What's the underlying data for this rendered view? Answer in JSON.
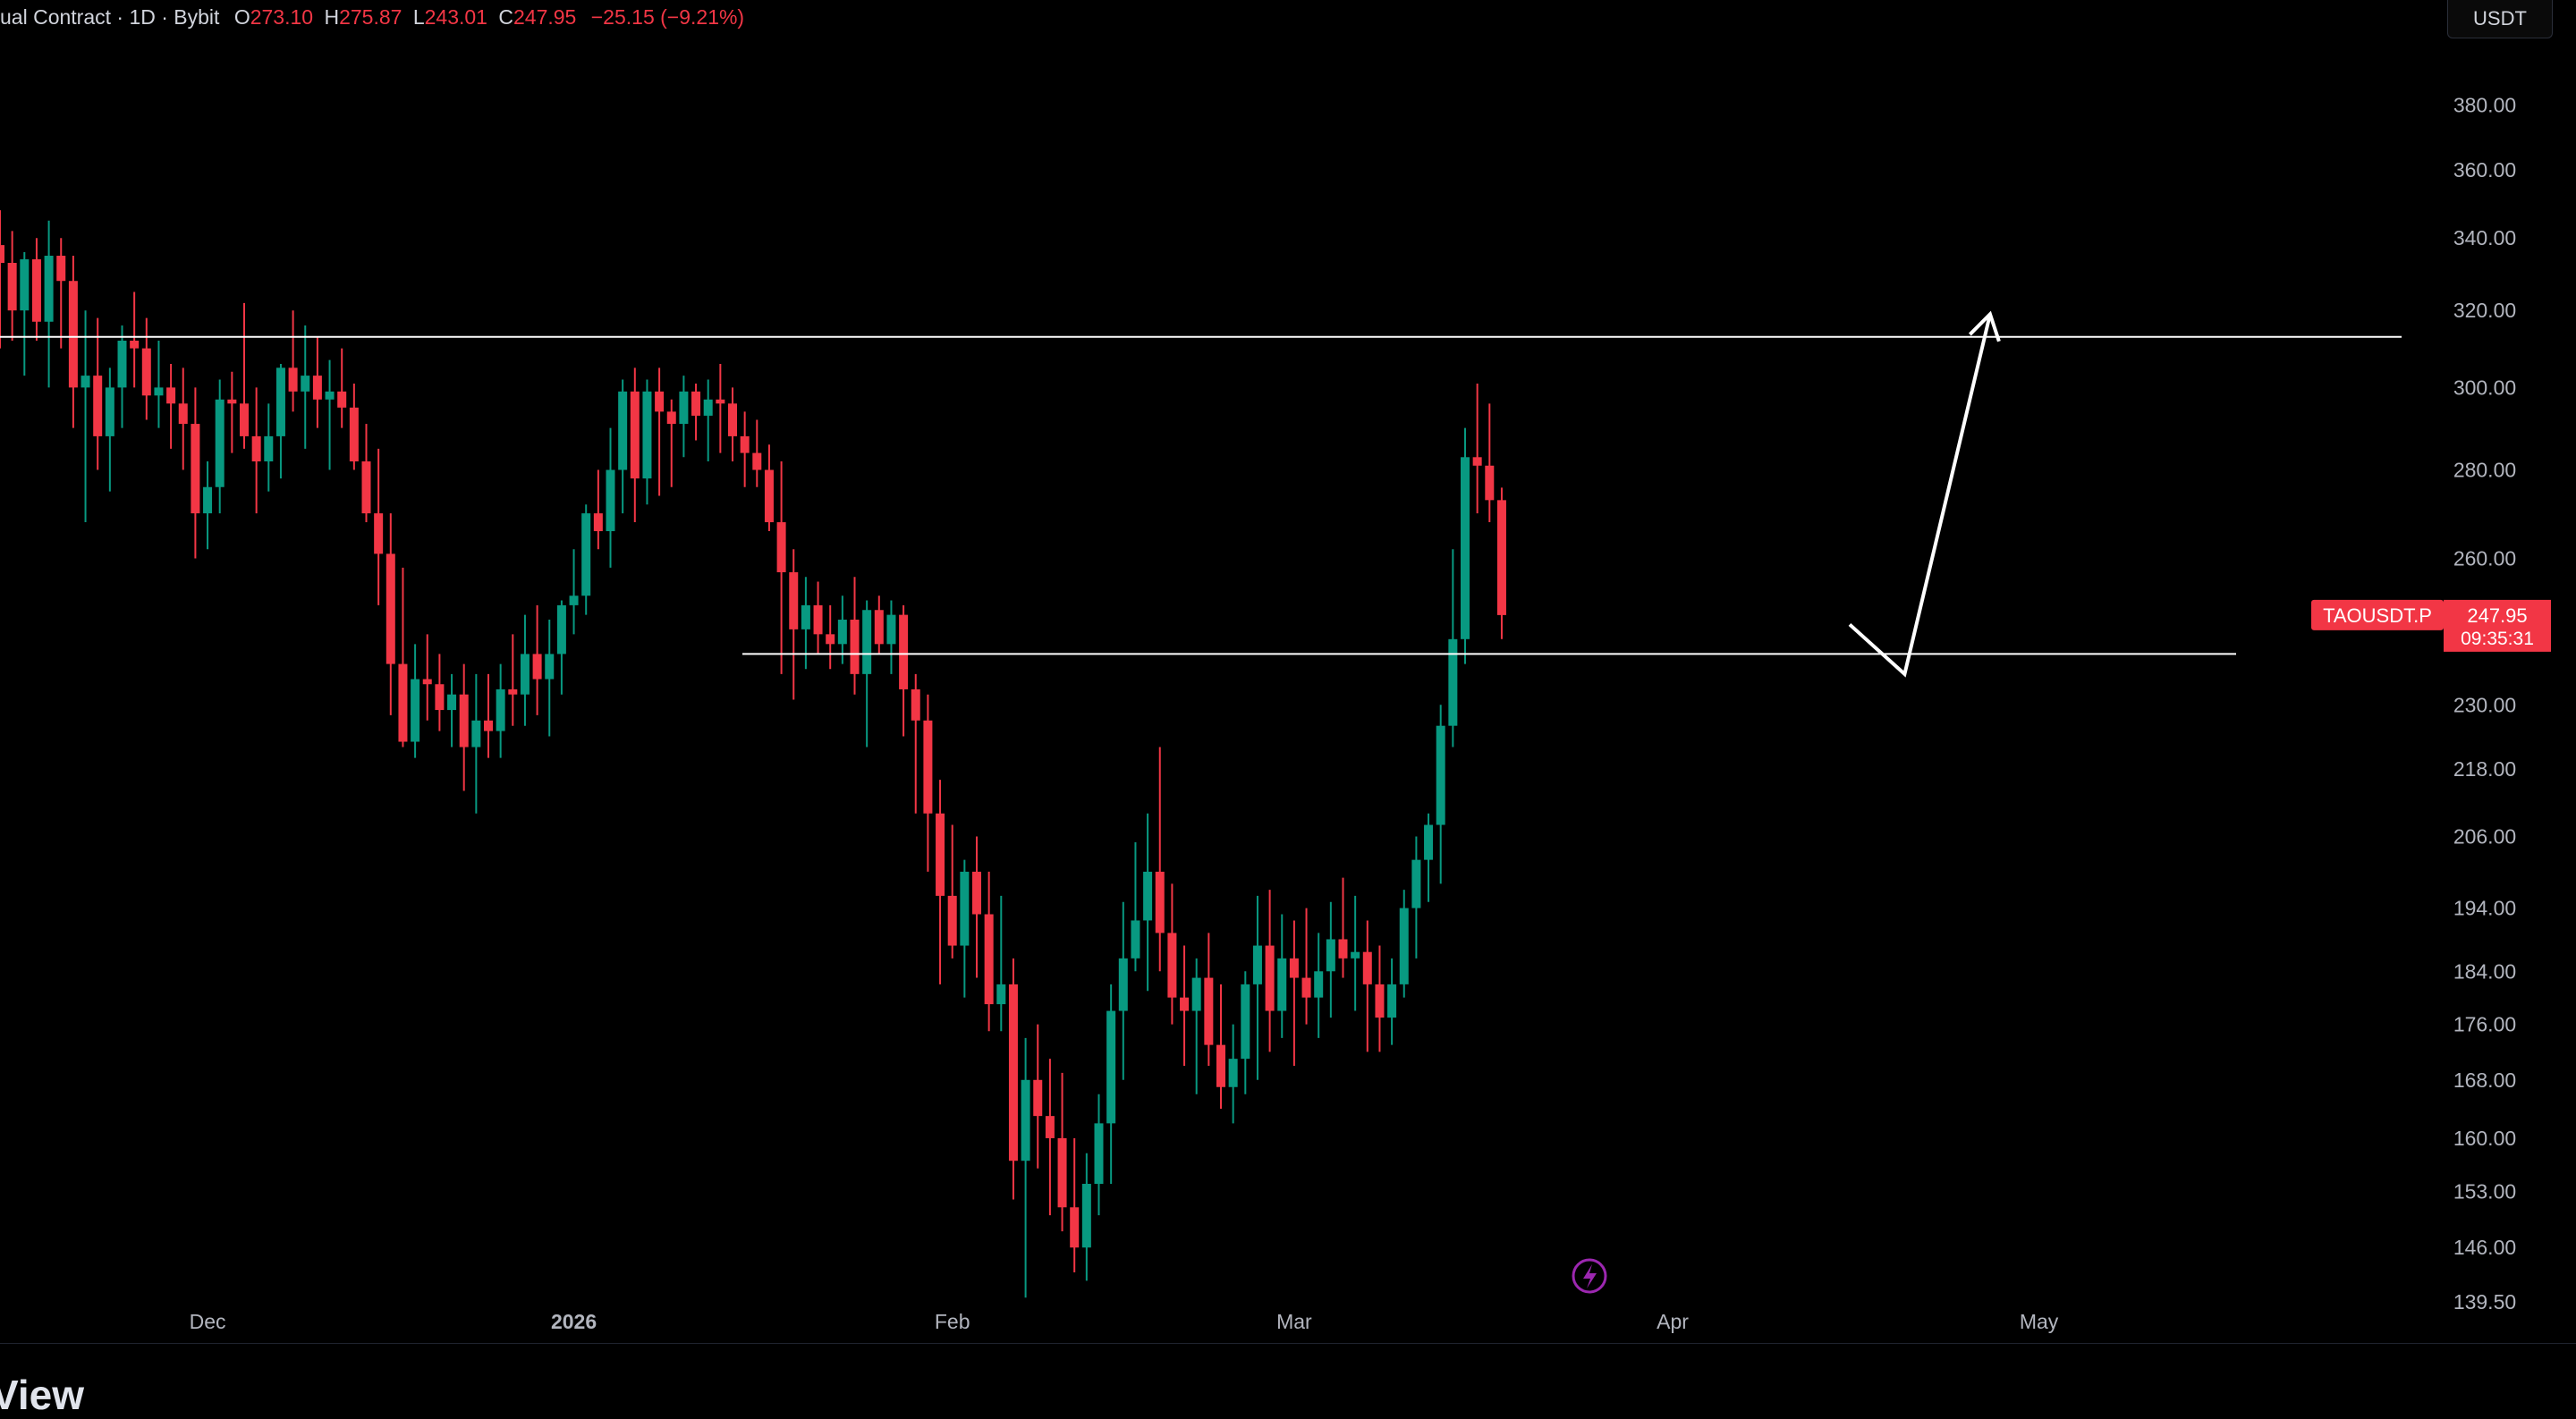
{
  "legend": {
    "symbol_text": "ual Contract · 1D · Bybit",
    "o_label": "O",
    "o_value": "273.10",
    "h_label": "H",
    "h_value": "275.87",
    "l_label": "L",
    "l_value": "243.01",
    "c_label": "C",
    "c_value": "247.95",
    "change": "−25.15 (−9.21%)"
  },
  "currency_button": "USDT",
  "price_tag": {
    "symbol": "TAOUSDT.P",
    "price": "247.95",
    "countdown": "09:35:31",
    "color": "#f23645"
  },
  "brand_partial": "View",
  "colors": {
    "up": "#089981",
    "down": "#f23645",
    "background": "#000000",
    "lines": "#ffffff",
    "event_icon": "#9c27b0"
  },
  "icons": {
    "event": "lightning-icon"
  },
  "chart_data": {
    "type": "candlestick",
    "timeframe": "1D",
    "ylim": [
      136,
      415
    ],
    "y_scale": "log",
    "y_ticks": [
      "380.00",
      "360.00",
      "340.00",
      "320.00",
      "300.00",
      "280.00",
      "260.00",
      "230.00",
      "218.00",
      "206.00",
      "194.00",
      "184.00",
      "176.00",
      "168.00",
      "160.00",
      "153.00",
      "146.00",
      "139.50"
    ],
    "x_ticks": [
      {
        "label": "Dec",
        "index": 17
      },
      {
        "label": "2026",
        "index": 47
      },
      {
        "label": "Feb",
        "index": 78
      },
      {
        "label": "Mar",
        "index": 106
      },
      {
        "label": "Apr",
        "index": 137
      },
      {
        "label": "May",
        "index": 167
      }
    ],
    "first_index_on_screen": 0,
    "candles": [
      [
        338,
        348,
        310,
        333
      ],
      [
        333,
        342,
        312,
        320
      ],
      [
        320,
        336,
        303,
        334
      ],
      [
        334,
        340,
        312,
        317
      ],
      [
        317,
        345,
        300,
        335
      ],
      [
        335,
        340,
        310,
        328
      ],
      [
        328,
        335,
        290,
        300
      ],
      [
        300,
        320,
        268,
        303
      ],
      [
        303,
        318,
        280,
        288
      ],
      [
        288,
        305,
        275,
        300
      ],
      [
        300,
        316,
        290,
        312
      ],
      [
        312,
        325,
        300,
        310
      ],
      [
        310,
        318,
        292,
        298
      ],
      [
        298,
        312,
        290,
        300
      ],
      [
        300,
        306,
        285,
        296
      ],
      [
        296,
        305,
        280,
        291
      ],
      [
        291,
        300,
        260,
        270
      ],
      [
        270,
        282,
        262,
        276
      ],
      [
        276,
        302,
        270,
        297
      ],
      [
        297,
        304,
        284,
        296
      ],
      [
        296,
        322,
        285,
        288
      ],
      [
        288,
        300,
        270,
        282
      ],
      [
        282,
        296,
        275,
        288
      ],
      [
        288,
        306,
        278,
        305
      ],
      [
        305,
        320,
        294,
        299
      ],
      [
        299,
        316,
        285,
        303
      ],
      [
        303,
        313,
        290,
        297
      ],
      [
        297,
        307,
        280,
        299
      ],
      [
        299,
        310,
        290,
        295
      ],
      [
        295,
        301,
        280,
        282
      ],
      [
        282,
        291,
        268,
        270
      ],
      [
        270,
        285,
        250,
        261
      ],
      [
        261,
        270,
        228,
        238
      ],
      [
        238,
        258,
        222,
        223
      ],
      [
        223,
        242,
        220,
        235
      ],
      [
        235,
        244,
        227,
        234
      ],
      [
        234,
        240,
        225,
        229
      ],
      [
        229,
        236,
        222,
        232
      ],
      [
        232,
        238,
        214,
        222
      ],
      [
        222,
        236,
        210,
        227
      ],
      [
        227,
        236,
        220,
        225
      ],
      [
        225,
        238,
        220,
        233
      ],
      [
        233,
        244,
        226,
        232
      ],
      [
        232,
        248,
        226,
        240
      ],
      [
        240,
        250,
        228,
        235
      ],
      [
        235,
        247,
        224,
        240
      ],
      [
        240,
        251,
        232,
        250
      ],
      [
        250,
        262,
        244,
        252
      ],
      [
        252,
        272,
        248,
        270
      ],
      [
        270,
        280,
        262,
        266
      ],
      [
        266,
        290,
        258,
        280
      ],
      [
        280,
        302,
        270,
        299
      ],
      [
        299,
        305,
        268,
        278
      ],
      [
        278,
        302,
        272,
        299
      ],
      [
        299,
        305,
        274,
        294
      ],
      [
        294,
        297,
        276,
        291
      ],
      [
        291,
        303,
        283,
        299
      ],
      [
        299,
        301,
        287,
        293
      ],
      [
        293,
        302,
        282,
        297
      ],
      [
        297,
        306,
        284,
        296
      ],
      [
        296,
        300,
        282,
        288
      ],
      [
        288,
        294,
        276,
        284
      ],
      [
        284,
        292,
        276,
        280
      ],
      [
        280,
        286,
        266,
        268
      ],
      [
        268,
        282,
        236,
        257
      ],
      [
        257,
        262,
        231,
        245
      ],
      [
        245,
        256,
        237,
        250
      ],
      [
        250,
        255,
        240,
        244
      ],
      [
        244,
        250,
        237,
        242
      ],
      [
        242,
        252,
        238,
        247
      ],
      [
        247,
        256,
        232,
        236
      ],
      [
        236,
        251,
        222,
        249
      ],
      [
        249,
        252,
        240,
        242
      ],
      [
        242,
        251,
        236,
        248
      ],
      [
        248,
        250,
        224,
        233
      ],
      [
        233,
        236,
        210,
        227
      ],
      [
        227,
        232,
        200,
        210
      ],
      [
        210,
        216,
        182,
        196
      ],
      [
        196,
        208,
        186,
        188
      ],
      [
        188,
        202,
        180,
        200
      ],
      [
        200,
        206,
        183,
        193
      ],
      [
        193,
        200,
        175,
        179
      ],
      [
        179,
        196,
        175,
        182
      ],
      [
        182,
        186,
        152,
        157
      ],
      [
        157,
        174,
        140,
        168
      ],
      [
        168,
        176,
        156,
        163
      ],
      [
        163,
        171,
        150,
        160
      ],
      [
        160,
        169,
        148,
        151
      ],
      [
        151,
        160,
        143,
        146
      ],
      [
        146,
        158,
        142,
        154
      ],
      [
        154,
        166,
        150,
        162
      ],
      [
        162,
        182,
        154,
        178
      ],
      [
        178,
        195,
        168,
        186
      ],
      [
        186,
        205,
        184,
        192
      ],
      [
        192,
        210,
        181,
        200
      ],
      [
        200,
        222,
        184,
        190
      ],
      [
        190,
        198,
        176,
        180
      ],
      [
        180,
        188,
        170,
        178
      ],
      [
        178,
        186,
        166,
        183
      ],
      [
        183,
        190,
        170,
        173
      ],
      [
        173,
        182,
        164,
        167
      ],
      [
        167,
        176,
        162,
        171
      ],
      [
        171,
        184,
        166,
        182
      ],
      [
        182,
        196,
        168,
        188
      ],
      [
        188,
        197,
        172,
        178
      ],
      [
        178,
        193,
        174,
        186
      ],
      [
        186,
        192,
        170,
        183
      ],
      [
        183,
        194,
        176,
        180
      ],
      [
        180,
        190,
        174,
        184
      ],
      [
        184,
        195,
        177,
        189
      ],
      [
        189,
        199,
        183,
        186
      ],
      [
        186,
        196,
        178,
        187
      ],
      [
        187,
        192,
        172,
        182
      ],
      [
        182,
        188,
        172,
        177
      ],
      [
        177,
        186,
        173,
        182
      ],
      [
        182,
        197,
        180,
        194
      ],
      [
        194,
        206,
        186,
        202
      ],
      [
        202,
        210,
        195,
        208
      ],
      [
        208,
        230,
        198,
        226
      ],
      [
        226,
        262,
        222,
        243
      ],
      [
        243,
        290,
        238,
        283
      ],
      [
        283,
        301,
        270,
        281
      ],
      [
        281,
        296,
        268,
        273
      ],
      [
        273,
        275.87,
        243.01,
        247.95
      ]
    ],
    "annotations": [
      {
        "type": "horizontal_line",
        "price": 313
      },
      {
        "type": "horizontal_line",
        "price": 240
      },
      {
        "type": "projection_path",
        "points": [
          [
            151.5,
            246
          ],
          [
            156,
            236
          ],
          [
            163,
            319
          ]
        ]
      }
    ]
  }
}
